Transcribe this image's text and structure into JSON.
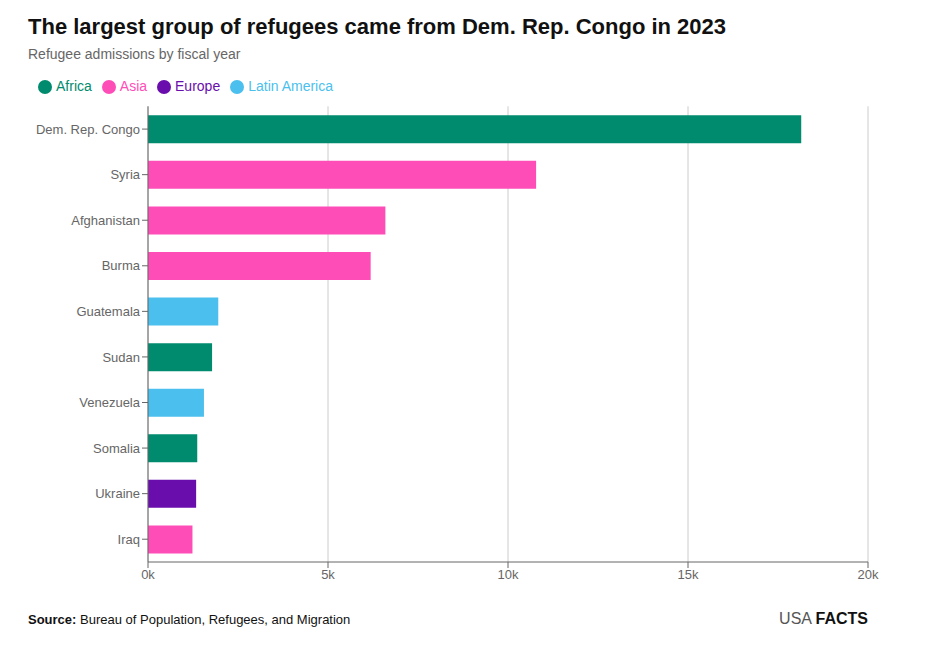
{
  "chart_data": {
    "type": "bar",
    "orientation": "horizontal",
    "stacked": true,
    "title": "The largest group of refugees came from Dem. Rep. Congo in 2023",
    "subtitle": "Refugee admissions by fiscal year",
    "source_label": "Source:",
    "source": "Bureau of Population, Refugees, and Migration",
    "branding": [
      "USA",
      "FACTS"
    ],
    "categories": [
      "Dem. Rep. Congo",
      "Syria",
      "Afghanistan",
      "Burma",
      "Guatemala",
      "Sudan",
      "Venezuela",
      "Somalia",
      "Ukraine",
      "Iraq"
    ],
    "series": [
      {
        "name": "Africa",
        "color": "#008B6E",
        "values": [
          18145,
          null,
          null,
          null,
          null,
          1780,
          null,
          1368,
          null,
          null
        ]
      },
      {
        "name": "Asia",
        "color": "#FF4DB8",
        "values": [
          null,
          10781,
          6594,
          6185,
          null,
          null,
          null,
          null,
          null,
          1235
        ]
      },
      {
        "name": "Europe",
        "color": "#6A0DAD",
        "values": [
          null,
          null,
          null,
          null,
          null,
          null,
          null,
          null,
          1337,
          null
        ]
      },
      {
        "name": "Latin America",
        "color": "#4BBFED",
        "values": [
          null,
          null,
          null,
          null,
          1952,
          null,
          1554,
          null,
          null,
          null
        ]
      }
    ],
    "xlim": [
      0,
      20000
    ],
    "xticks": [
      {
        "value": 0,
        "label": "0k"
      },
      {
        "value": 5000,
        "label": "5k"
      },
      {
        "value": 10000,
        "label": "10k"
      },
      {
        "value": 15000,
        "label": "15k"
      },
      {
        "value": 20000,
        "label": "20k"
      }
    ],
    "grid": true,
    "legend": "upper left"
  }
}
